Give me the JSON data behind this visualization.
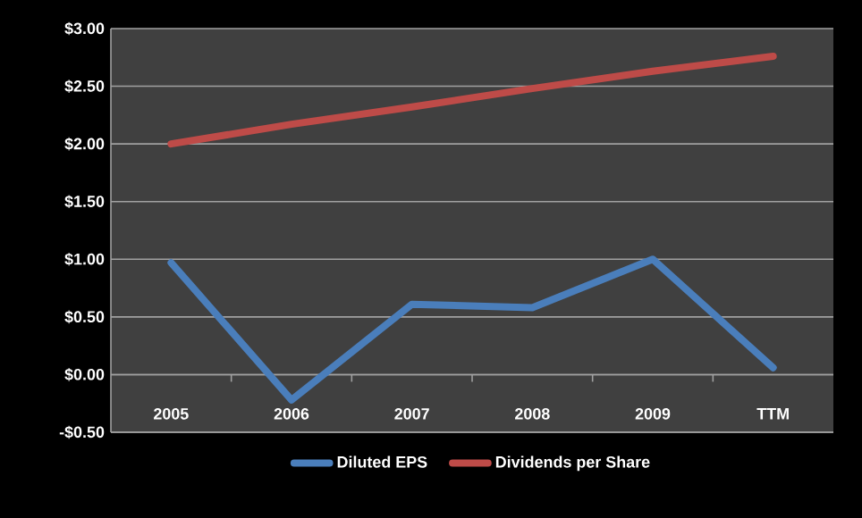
{
  "chart_data": {
    "type": "line",
    "categories": [
      "2005",
      "2006",
      "2007",
      "2008",
      "2009",
      "TTM"
    ],
    "series": [
      {
        "name": "Diluted EPS",
        "color": "#4a7ebb",
        "values": [
          0.97,
          -0.22,
          0.61,
          0.58,
          1.0,
          0.06
        ]
      },
      {
        "name": "Dividends per Share",
        "color": "#be4b48",
        "values": [
          2.0,
          2.17,
          2.32,
          2.48,
          2.63,
          2.76
        ]
      }
    ],
    "ylim": [
      -0.5,
      3.0
    ],
    "yticks": [
      {
        "value": -0.5,
        "label": "-$0.50"
      },
      {
        "value": 0,
        "label": "$0.00"
      },
      {
        "value": 0.5,
        "label": "$0.50"
      },
      {
        "value": 1.0,
        "label": "$1.00"
      },
      {
        "value": 1.5,
        "label": "$1.50"
      },
      {
        "value": 2.0,
        "label": "$2.00"
      },
      {
        "value": 2.5,
        "label": "$2.50"
      },
      {
        "value": 3.0,
        "label": "$3.00"
      }
    ],
    "grid": "y",
    "legend": "bottom",
    "marker": "none",
    "line_style": "solid"
  }
}
